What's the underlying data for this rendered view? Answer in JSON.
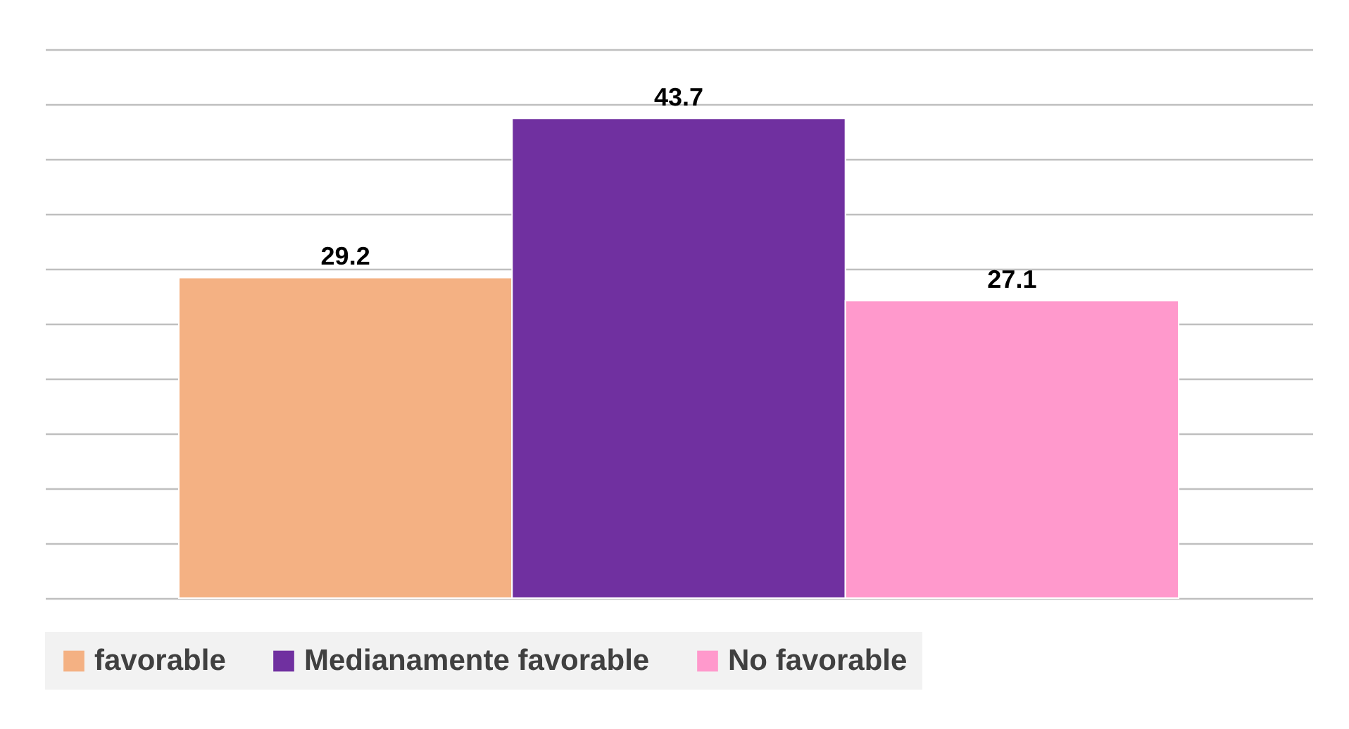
{
  "chart_data": {
    "type": "bar",
    "categories": [
      null
    ],
    "series": [
      {
        "name": "favorable",
        "color": "#f4b183",
        "values": [
          29.2
        ]
      },
      {
        "name": "Medianamente favorable",
        "color": "#7030a0",
        "values": [
          43.7
        ]
      },
      {
        "name": "No favorable",
        "color": "#ff99cc",
        "values": [
          27.1
        ]
      }
    ],
    "ylim": [
      0,
      50
    ],
    "yticks": [
      {
        "value": 0,
        "label": null
      },
      {
        "value": 5,
        "label": null
      },
      {
        "value": 10,
        "label": null
      },
      {
        "value": 15,
        "label": null
      },
      {
        "value": 20,
        "label": null
      },
      {
        "value": 25,
        "label": null
      },
      {
        "value": 30,
        "label": null
      },
      {
        "value": 35,
        "label": null
      },
      {
        "value": 40,
        "label": null
      },
      {
        "value": 45,
        "label": null
      },
      {
        "value": 50,
        "label": null
      }
    ],
    "grid": "y",
    "data_labels": true,
    "legend": "bottom"
  }
}
